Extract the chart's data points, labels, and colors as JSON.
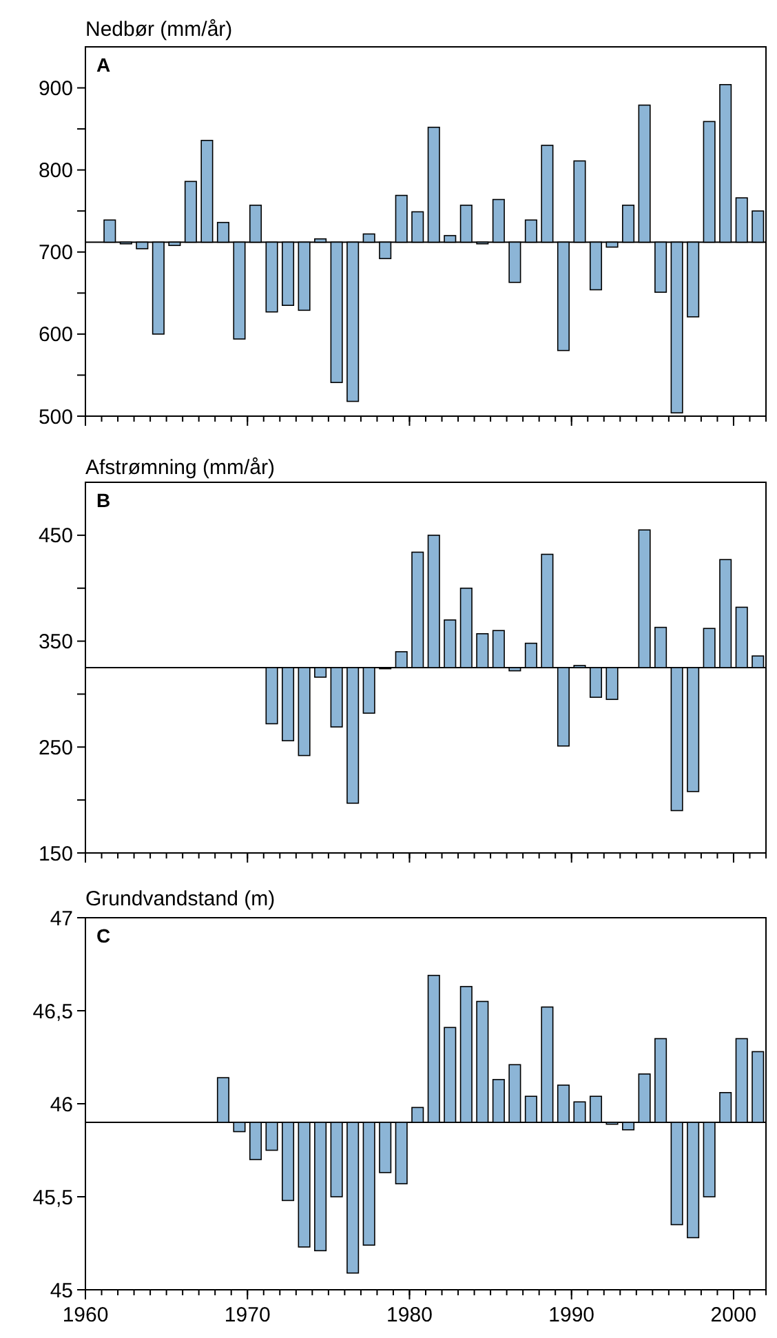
{
  "chart_data": [
    {
      "type": "bar",
      "title": "Nedbør (mm/år)",
      "annotations": [
        "A"
      ],
      "color": "#8cb5d6",
      "x": [
        1961.5,
        1962.5,
        1963.5,
        1964.5,
        1965.5,
        1966.5,
        1967.5,
        1968.5,
        1969.5,
        1970.5,
        1971.5,
        1972.5,
        1973.5,
        1974.5,
        1975.5,
        1976.5,
        1977.5,
        1978.5,
        1979.5,
        1980.5,
        1981.5,
        1982.5,
        1983.5,
        1984.5,
        1985.5,
        1986.5,
        1987.5,
        1988.5,
        1989.5,
        1990.5,
        1991.5,
        1992.5,
        1993.5,
        1994.5,
        1995.5,
        1996.5,
        1997.5,
        1998.5,
        1999.5,
        2000.5,
        2001.5
      ],
      "base": [
        712,
        712,
        712,
        712,
        712,
        712,
        712,
        712,
        712,
        712,
        712,
        712,
        712,
        712,
        712,
        712,
        712,
        712,
        712,
        712,
        712,
        712,
        712,
        712,
        712,
        712,
        712,
        712,
        712,
        712,
        712,
        712,
        712,
        712,
        712,
        712,
        712,
        712,
        712,
        712,
        712
      ],
      "values": [
        27,
        -2,
        -8,
        -112,
        -4,
        74,
        124,
        24,
        -118,
        45,
        -85,
        -77,
        -83,
        4,
        -171,
        -194,
        10,
        -20,
        57,
        37,
        140,
        8,
        45,
        -2,
        52,
        -49,
        27,
        118,
        -132,
        99,
        -58,
        -6,
        45,
        167,
        -61,
        -208,
        -91,
        147,
        192,
        54,
        38
      ],
      "xlim": [
        1960,
        2002
      ],
      "xticks": [
        {
          "value": 1960,
          "label": null
        },
        {
          "value": 1970,
          "label": null
        },
        {
          "value": 1980,
          "label": null
        },
        {
          "value": 1990,
          "label": null
        },
        {
          "value": 2000,
          "label": null
        }
      ],
      "ylim": [
        500,
        950
      ],
      "yticks": [
        500,
        {
          "value": 550,
          "label": null
        },
        600,
        {
          "value": 650,
          "label": null
        },
        700,
        {
          "value": 750,
          "label": null
        },
        800,
        {
          "value": 850,
          "label": null
        },
        900
      ],
      "tick_labels": "y",
      "ref_lines": [
        {
          "axis": "y",
          "value": 712
        }
      ]
    },
    {
      "type": "bar",
      "title": "Afstrømning (mm/år)",
      "annotations": [
        "B"
      ],
      "color": "#8cb5d6",
      "x": [
        1971.5,
        1972.5,
        1973.5,
        1974.5,
        1975.5,
        1976.5,
        1977.5,
        1978.5,
        1979.5,
        1980.5,
        1981.5,
        1982.5,
        1983.5,
        1984.5,
        1985.5,
        1986.5,
        1987.5,
        1988.5,
        1989.5,
        1990.5,
        1991.5,
        1992.5,
        1994.5,
        1995.5,
        1996.5,
        1997.5,
        1998.5,
        1999.5,
        2000.5,
        2001.5
      ],
      "base": [
        325,
        325,
        325,
        325,
        325,
        325,
        325,
        325,
        325,
        325,
        325,
        325,
        325,
        325,
        325,
        325,
        325,
        325,
        325,
        325,
        325,
        325,
        325,
        325,
        325,
        325,
        325,
        325,
        325,
        325
      ],
      "values": [
        -53,
        -69,
        -83,
        -9,
        -56,
        -128,
        -43,
        -1,
        15,
        109,
        125,
        45,
        75,
        32,
        35,
        -3,
        23,
        107,
        -74,
        2,
        -28,
        -30,
        130,
        38,
        -135,
        -117,
        37,
        102,
        57,
        11
      ],
      "xlim": [
        1960,
        2002
      ],
      "xticks": [
        {
          "value": 1960,
          "label": null
        },
        {
          "value": 1970,
          "label": null
        },
        {
          "value": 1980,
          "label": null
        },
        {
          "value": 1990,
          "label": null
        },
        {
          "value": 2000,
          "label": null
        }
      ],
      "ylim": [
        150,
        500
      ],
      "yticks": [
        150,
        {
          "value": 200,
          "label": null
        },
        250,
        {
          "value": 300,
          "label": null
        },
        350,
        {
          "value": 400,
          "label": null
        },
        450
      ],
      "tick_labels": "y",
      "ref_lines": [
        {
          "axis": "y",
          "value": 325
        }
      ]
    },
    {
      "type": "bar",
      "title": "Grundvandstand (m)",
      "annotations": [
        "C"
      ],
      "color": "#8cb5d6",
      "x": [
        1968.5,
        1969.5,
        1970.5,
        1971.5,
        1972.5,
        1973.5,
        1974.5,
        1975.5,
        1976.5,
        1977.5,
        1978.5,
        1979.5,
        1980.5,
        1981.5,
        1982.5,
        1983.5,
        1984.5,
        1985.5,
        1986.5,
        1987.5,
        1988.5,
        1989.5,
        1990.5,
        1991.5,
        1992.5,
        1993.5,
        1994.5,
        1995.5,
        1996.5,
        1997.5,
        1998.5,
        1999.5,
        2000.5,
        2001.5
      ],
      "base": [
        45.9,
        45.9,
        45.9,
        45.9,
        45.9,
        45.9,
        45.9,
        45.9,
        45.9,
        45.9,
        45.9,
        45.9,
        45.9,
        45.9,
        45.9,
        45.9,
        45.9,
        45.9,
        45.9,
        45.9,
        45.9,
        45.9,
        45.9,
        45.9,
        45.9,
        45.9,
        45.9,
        45.9,
        45.9,
        45.9,
        45.9,
        45.9,
        45.9,
        45.9
      ],
      "values": [
        0.24,
        -0.05,
        -0.2,
        -0.15,
        -0.42,
        -0.67,
        -0.69,
        -0.4,
        -0.81,
        -0.66,
        -0.27,
        -0.33,
        0.08,
        0.79,
        0.51,
        0.73,
        0.65,
        0.23,
        0.31,
        0.14,
        0.62,
        0.2,
        0.11,
        0.14,
        -0.01,
        -0.04,
        0.26,
        0.45,
        -0.55,
        -0.62,
        -0.4,
        0.16,
        0.45,
        0.38
      ],
      "xlim": [
        1960,
        2002
      ],
      "xticks": [
        1960,
        1970,
        1980,
        1990,
        2000
      ],
      "ylim": [
        45,
        47
      ],
      "yticks": [
        45,
        {
          "value": 45.5,
          "label": "45,5"
        },
        46,
        {
          "value": 46.5,
          "label": "46,5"
        },
        47
      ],
      "ref_lines": [
        {
          "axis": "y",
          "value": 45.9
        }
      ]
    }
  ]
}
